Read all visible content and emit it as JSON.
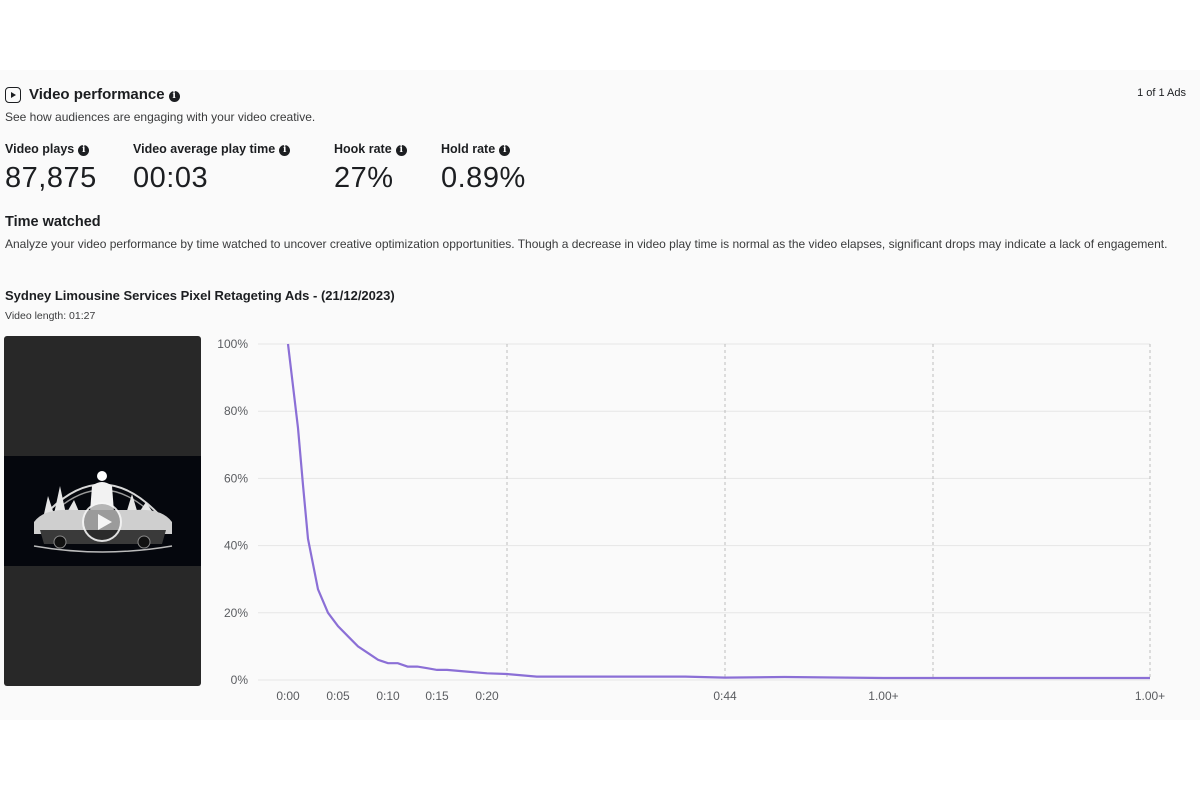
{
  "header": {
    "title": "Video performance",
    "subtitle": "See how audiences are engaging with your video creative.",
    "ad_counter": "1 of 1 Ads",
    "icon": "video-play-icon"
  },
  "metrics": [
    {
      "label": "Video plays",
      "value": "87,875"
    },
    {
      "label": "Video average play time",
      "value": "00:03"
    },
    {
      "label": "Hook rate",
      "value": "27%"
    },
    {
      "label": "Hold rate",
      "value": "0.89%"
    }
  ],
  "time_watched": {
    "title": "Time watched",
    "description": "Analyze your video performance by time watched to uncover creative optimization opportunities. Though a decrease in video play time is normal as the video elapses, significant drops may indicate a lack of engagement.",
    "ad_name": "Sydney Limousine Services Pixel Retageting Ads - (21/12/2023)",
    "video_length": "Video length: 01:27"
  },
  "colors": {
    "line": "#8b6fd6",
    "grid": "#e6e6e6",
    "dashed": "#bdbdbd"
  },
  "chart_data": {
    "type": "line",
    "title": "",
    "xlabel": "",
    "ylabel": "",
    "ylim": [
      0,
      100
    ],
    "y_ticks": [
      "100%",
      "80%",
      "60%",
      "40%",
      "20%",
      "0%"
    ],
    "x_tick_labels": [
      "0:00",
      "0:05",
      "0:10",
      "0:15",
      "0:20",
      "0:44",
      "1.00+",
      "1.00+"
    ],
    "x_tick_seconds": [
      0,
      5,
      10,
      15,
      20,
      44,
      60,
      87
    ],
    "dashed_lines_at": [
      22,
      44,
      65,
      87
    ],
    "grid": "horizontal",
    "series": [
      {
        "name": "",
        "x": [
          0,
          1,
          1.5,
          2,
          3,
          4,
          5,
          6,
          7,
          8,
          9,
          10,
          11,
          12,
          13,
          14,
          15,
          16,
          18,
          20,
          22,
          25,
          30,
          35,
          40,
          44,
          50,
          60,
          70,
          80,
          87
        ],
        "y": [
          100,
          75,
          58,
          42,
          27,
          20,
          16,
          13,
          10,
          8,
          6,
          5,
          5,
          4,
          4,
          3.5,
          3,
          3,
          2.5,
          2,
          1.8,
          1,
          1,
          1,
          1,
          0.7,
          0.9,
          0.6,
          0.6,
          0.6,
          0.6
        ]
      }
    ]
  }
}
